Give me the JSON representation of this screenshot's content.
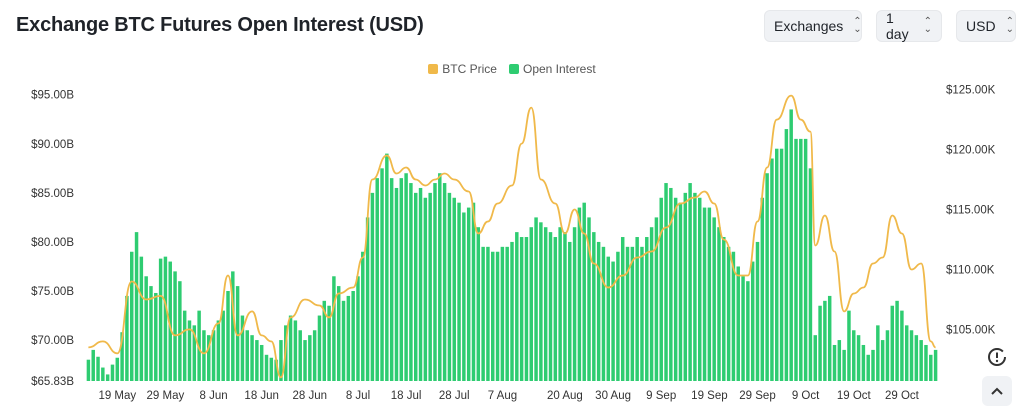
{
  "header": {
    "title": "Exchange BTC Futures Open Interest (USD)"
  },
  "controls": {
    "exchanges": {
      "value": "Exchanges"
    },
    "interval": {
      "value": "1 day"
    },
    "currency": {
      "value": "USD"
    }
  },
  "colors": {
    "price": "#f0b94a",
    "oi": "#2ecc71",
    "oi_light": "#b3ecc8",
    "grid": "#eeeeee"
  },
  "icons": {
    "reset": "clock-reset-icon",
    "scroll": "chevron-up-icon",
    "select": "chevron-updown-icon"
  },
  "chart_data": {
    "type": "bar",
    "legend": [
      "BTC Price",
      "Open Interest"
    ],
    "legend_position": "top-center",
    "x_ticks": [
      "19 May",
      "29 May",
      "8 Jun",
      "18 Jun",
      "28 Jun",
      "8 Jul",
      "18 Jul",
      "28 Jul",
      "7 Aug",
      "20 Aug",
      "30 Aug",
      "9 Sep",
      "19 Sep",
      "29 Sep",
      "9 Oct",
      "19 Oct",
      "29 Oct"
    ],
    "y_left_ticks": [
      "$65.83B",
      "$70.00B",
      "$75.00B",
      "$80.00B",
      "$85.00B",
      "$90.00B",
      "$95.00B"
    ],
    "y_right_ticks": [
      "$105.00K",
      "$110.00K",
      "$115.00K",
      "$120.00K",
      "$125.00K"
    ],
    "ylim_left": [
      65.83,
      96.5
    ],
    "ylim_right": [
      100.7,
      125.8
    ],
    "x_range": [
      "2025-05-13",
      "2025-11-05"
    ],
    "grid": false,
    "series": [
      {
        "name": "Open Interest",
        "axis": "left",
        "unit": "USD billions",
        "points": [
          [
            "2025-05-13",
            68.0
          ],
          [
            "2025-05-14",
            69.0
          ],
          [
            "2025-05-15",
            68.3
          ],
          [
            "2025-05-16",
            67.2
          ],
          [
            "2025-05-17",
            66.5
          ],
          [
            "2025-05-18",
            67.5
          ],
          [
            "2025-05-19",
            68.2
          ],
          [
            "2025-05-20",
            70.8
          ],
          [
            "2025-05-21",
            74.5
          ],
          [
            "2025-05-22",
            79.0
          ],
          [
            "2025-05-23",
            81.0
          ],
          [
            "2025-05-24",
            78.5
          ],
          [
            "2025-05-25",
            76.5
          ],
          [
            "2025-05-26",
            75.5
          ],
          [
            "2025-05-27",
            74.8
          ],
          [
            "2025-05-28",
            78.3
          ],
          [
            "2025-05-29",
            78.5
          ],
          [
            "2025-05-30",
            78.0
          ],
          [
            "2025-05-31",
            77.0
          ],
          [
            "2025-06-01",
            76.0
          ],
          [
            "2025-06-02",
            73.0
          ],
          [
            "2025-06-03",
            72.0
          ],
          [
            "2025-06-04",
            71.5
          ],
          [
            "2025-06-05",
            73.0
          ],
          [
            "2025-06-06",
            71.0
          ],
          [
            "2025-06-07",
            70.5
          ],
          [
            "2025-06-08",
            71.0
          ],
          [
            "2025-06-09",
            72.0
          ],
          [
            "2025-06-10",
            73.0
          ],
          [
            "2025-06-11",
            75.0
          ],
          [
            "2025-06-12",
            77.0
          ],
          [
            "2025-06-13",
            75.5
          ],
          [
            "2025-06-14",
            72.5
          ],
          [
            "2025-06-15",
            71.0
          ],
          [
            "2025-06-16",
            70.5
          ],
          [
            "2025-06-17",
            70.0
          ],
          [
            "2025-06-18",
            69.5
          ],
          [
            "2025-06-19",
            68.5
          ],
          [
            "2025-06-20",
            68.2
          ],
          [
            "2025-06-21",
            68.0
          ],
          [
            "2025-06-22",
            70.0
          ],
          [
            "2025-06-23",
            71.5
          ],
          [
            "2025-06-24",
            72.5
          ],
          [
            "2025-06-25",
            72.0
          ],
          [
            "2025-06-26",
            71.0
          ],
          [
            "2025-06-27",
            70.0
          ],
          [
            "2025-06-28",
            70.5
          ],
          [
            "2025-06-29",
            71.0
          ],
          [
            "2025-06-30",
            72.5
          ],
          [
            "2025-07-01",
            74.0
          ],
          [
            "2025-07-02",
            73.5
          ],
          [
            "2025-07-03",
            76.5
          ],
          [
            "2025-07-04",
            75.5
          ],
          [
            "2025-07-05",
            74.0
          ],
          [
            "2025-07-06",
            74.5
          ],
          [
            "2025-07-07",
            75.0
          ],
          [
            "2025-07-08",
            76.5
          ],
          [
            "2025-07-09",
            79.0
          ],
          [
            "2025-07-10",
            82.5
          ],
          [
            "2025-07-11",
            85.0
          ],
          [
            "2025-07-12",
            86.5
          ],
          [
            "2025-07-13",
            87.5
          ],
          [
            "2025-07-14",
            89.0
          ],
          [
            "2025-07-15",
            86.5
          ],
          [
            "2025-07-16",
            85.5
          ],
          [
            "2025-07-17",
            86.5
          ],
          [
            "2025-07-18",
            87.0
          ],
          [
            "2025-07-19",
            86.0
          ],
          [
            "2025-07-20",
            85.0
          ],
          [
            "2025-07-21",
            85.5
          ],
          [
            "2025-07-22",
            84.5
          ],
          [
            "2025-07-23",
            85.0
          ],
          [
            "2025-07-24",
            86.0
          ],
          [
            "2025-07-25",
            87.0
          ],
          [
            "2025-07-26",
            86.0
          ],
          [
            "2025-07-27",
            85.0
          ],
          [
            "2025-07-28",
            84.5
          ],
          [
            "2025-07-29",
            84.0
          ],
          [
            "2025-07-30",
            83.0
          ],
          [
            "2025-07-31",
            83.5
          ],
          [
            "2025-08-01",
            84.0
          ],
          [
            "2025-08-02",
            81.5
          ],
          [
            "2025-08-03",
            79.5
          ],
          [
            "2025-08-04",
            79.5
          ],
          [
            "2025-08-05",
            79.0
          ],
          [
            "2025-08-06",
            79.0
          ],
          [
            "2025-08-07",
            79.5
          ],
          [
            "2025-08-08",
            79.5
          ],
          [
            "2025-08-09",
            80.0
          ],
          [
            "2025-08-10",
            81.0
          ],
          [
            "2025-08-11",
            80.5
          ],
          [
            "2025-08-12",
            80.5
          ],
          [
            "2025-08-13",
            81.5
          ],
          [
            "2025-08-14",
            82.5
          ],
          [
            "2025-08-15",
            82.0
          ],
          [
            "2025-08-16",
            81.5
          ],
          [
            "2025-08-17",
            81.0
          ],
          [
            "2025-08-18",
            80.5
          ],
          [
            "2025-08-19",
            81.5
          ],
          [
            "2025-08-20",
            81.0
          ],
          [
            "2025-08-21",
            80.0
          ],
          [
            "2025-08-22",
            81.5
          ],
          [
            "2025-08-23",
            83.5
          ],
          [
            "2025-08-24",
            84.0
          ],
          [
            "2025-08-25",
            82.5
          ],
          [
            "2025-08-26",
            81.0
          ],
          [
            "2025-08-27",
            80.0
          ],
          [
            "2025-08-28",
            79.5
          ],
          [
            "2025-08-29",
            78.5
          ],
          [
            "2025-08-30",
            78.0
          ],
          [
            "2025-08-31",
            79.0
          ],
          [
            "2025-09-01",
            80.5
          ],
          [
            "2025-09-02",
            79.5
          ],
          [
            "2025-09-03",
            79.5
          ],
          [
            "2025-09-04",
            80.5
          ],
          [
            "2025-09-05",
            79.5
          ],
          [
            "2025-09-06",
            80.5
          ],
          [
            "2025-09-07",
            81.5
          ],
          [
            "2025-09-08",
            82.5
          ],
          [
            "2025-09-09",
            84.5
          ],
          [
            "2025-09-10",
            86.0
          ],
          [
            "2025-09-11",
            85.5
          ],
          [
            "2025-09-12",
            84.5
          ],
          [
            "2025-09-13",
            84.0
          ],
          [
            "2025-09-14",
            85.0
          ],
          [
            "2025-09-15",
            86.0
          ],
          [
            "2025-09-16",
            85.0
          ],
          [
            "2025-09-17",
            84.5
          ],
          [
            "2025-09-18",
            83.5
          ],
          [
            "2025-09-19",
            83.5
          ],
          [
            "2025-09-20",
            82.5
          ],
          [
            "2025-09-21",
            81.5
          ],
          [
            "2025-09-22",
            80.5
          ],
          [
            "2025-09-23",
            79.5
          ],
          [
            "2025-09-24",
            79.0
          ],
          [
            "2025-09-25",
            77.5
          ],
          [
            "2025-09-26",
            76.5
          ],
          [
            "2025-09-27",
            76.0
          ],
          [
            "2025-09-28",
            78.0
          ],
          [
            "2025-09-29",
            80.0
          ],
          [
            "2025-09-30",
            84.5
          ],
          [
            "2025-10-01",
            87.0
          ],
          [
            "2025-10-02",
            88.5
          ],
          [
            "2025-10-03",
            89.5
          ],
          [
            "2025-10-04",
            89.5
          ],
          [
            "2025-10-05",
            91.5
          ],
          [
            "2025-10-06",
            93.5
          ],
          [
            "2025-10-07",
            90.5
          ],
          [
            "2025-10-08",
            90.5
          ],
          [
            "2025-10-09",
            90.5
          ],
          [
            "2025-10-10",
            87.5
          ],
          [
            "2025-10-11",
            70.5
          ],
          [
            "2025-10-12",
            73.5
          ],
          [
            "2025-10-13",
            74.0
          ],
          [
            "2025-10-14",
            74.5
          ],
          [
            "2025-10-15",
            69.5
          ],
          [
            "2025-10-16",
            70.0
          ],
          [
            "2025-10-17",
            69.0
          ],
          [
            "2025-10-18",
            73.0
          ],
          [
            "2025-10-19",
            71.0
          ],
          [
            "2025-10-20",
            70.5
          ],
          [
            "2025-10-21",
            69.5
          ],
          [
            "2025-10-22",
            68.5
          ],
          [
            "2025-10-23",
            69.0
          ],
          [
            "2025-10-24",
            71.5
          ],
          [
            "2025-10-25",
            70.0
          ],
          [
            "2025-10-26",
            71.0
          ],
          [
            "2025-10-27",
            73.5
          ],
          [
            "2025-10-28",
            74.0
          ],
          [
            "2025-10-29",
            73.0
          ],
          [
            "2025-10-30",
            71.5
          ],
          [
            "2025-10-31",
            71.0
          ],
          [
            "2025-11-01",
            70.5
          ],
          [
            "2025-11-02",
            70.0
          ],
          [
            "2025-11-03",
            69.5
          ],
          [
            "2025-11-04",
            68.5
          ],
          [
            "2025-11-05",
            69.0
          ]
        ]
      },
      {
        "name": "BTC Price",
        "axis": "right",
        "unit": "USD thousands",
        "points": [
          [
            "2025-05-13",
            103.5
          ],
          [
            "2025-05-16",
            104.0
          ],
          [
            "2025-05-19",
            103.0
          ],
          [
            "2025-05-22",
            109.0
          ],
          [
            "2025-05-25",
            107.5
          ],
          [
            "2025-05-28",
            107.8
          ],
          [
            "2025-05-31",
            104.5
          ],
          [
            "2025-06-03",
            105.0
          ],
          [
            "2025-06-06",
            103.0
          ],
          [
            "2025-06-09",
            105.5
          ],
          [
            "2025-06-11",
            109.5
          ],
          [
            "2025-06-13",
            104.5
          ],
          [
            "2025-06-16",
            106.5
          ],
          [
            "2025-06-18",
            104.5
          ],
          [
            "2025-06-20",
            104.0
          ],
          [
            "2025-06-22",
            101.0
          ],
          [
            "2025-06-24",
            106.0
          ],
          [
            "2025-06-27",
            107.5
          ],
          [
            "2025-06-30",
            107.0
          ],
          [
            "2025-07-02",
            106.0
          ],
          [
            "2025-07-04",
            108.0
          ],
          [
            "2025-07-07",
            108.5
          ],
          [
            "2025-07-09",
            111.0
          ],
          [
            "2025-07-11",
            117.5
          ],
          [
            "2025-07-14",
            119.5
          ],
          [
            "2025-07-16",
            118.0
          ],
          [
            "2025-07-18",
            118.5
          ],
          [
            "2025-07-20",
            117.5
          ],
          [
            "2025-07-22",
            117.0
          ],
          [
            "2025-07-24",
            117.5
          ],
          [
            "2025-07-26",
            118.0
          ],
          [
            "2025-07-28",
            117.5
          ],
          [
            "2025-07-31",
            116.5
          ],
          [
            "2025-08-02",
            113.0
          ],
          [
            "2025-08-04",
            114.0
          ],
          [
            "2025-08-06",
            115.5
          ],
          [
            "2025-08-09",
            117.0
          ],
          [
            "2025-08-11",
            120.5
          ],
          [
            "2025-08-13",
            123.5
          ],
          [
            "2025-08-15",
            117.5
          ],
          [
            "2025-08-18",
            115.5
          ],
          [
            "2025-08-20",
            113.0
          ],
          [
            "2025-08-22",
            115.0
          ],
          [
            "2025-08-24",
            113.0
          ],
          [
            "2025-08-26",
            110.5
          ],
          [
            "2025-08-29",
            108.5
          ],
          [
            "2025-09-01",
            109.5
          ],
          [
            "2025-09-04",
            111.0
          ],
          [
            "2025-09-07",
            111.5
          ],
          [
            "2025-09-10",
            113.5
          ],
          [
            "2025-09-13",
            115.5
          ],
          [
            "2025-09-16",
            116.0
          ],
          [
            "2025-09-18",
            116.5
          ],
          [
            "2025-09-20",
            115.5
          ],
          [
            "2025-09-22",
            112.5
          ],
          [
            "2025-09-25",
            109.5
          ],
          [
            "2025-09-27",
            109.5
          ],
          [
            "2025-09-29",
            114.0
          ],
          [
            "2025-10-01",
            118.5
          ],
          [
            "2025-10-03",
            122.5
          ],
          [
            "2025-10-06",
            124.5
          ],
          [
            "2025-10-08",
            122.5
          ],
          [
            "2025-10-10",
            121.5
          ],
          [
            "2025-10-11",
            112.0
          ],
          [
            "2025-10-13",
            114.5
          ],
          [
            "2025-10-15",
            111.5
          ],
          [
            "2025-10-17",
            106.5
          ],
          [
            "2025-10-19",
            108.0
          ],
          [
            "2025-10-21",
            108.5
          ],
          [
            "2025-10-23",
            110.5
          ],
          [
            "2025-10-25",
            111.0
          ],
          [
            "2025-10-27",
            114.5
          ],
          [
            "2025-10-29",
            113.0
          ],
          [
            "2025-10-31",
            110.0
          ],
          [
            "2025-11-02",
            110.5
          ],
          [
            "2025-11-04",
            104.0
          ],
          [
            "2025-11-05",
            103.5
          ]
        ]
      }
    ]
  }
}
